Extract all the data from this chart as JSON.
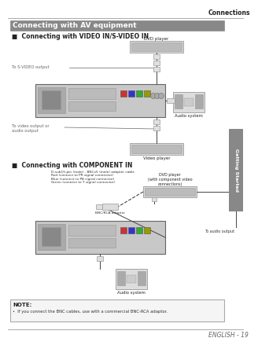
{
  "page_bg": "#ffffff",
  "header_text": "Connections",
  "header_line_color": "#888888",
  "header_text_color": "#222222",
  "main_title_text": "Connecting with AV equipment",
  "main_title_bg": "#888888",
  "main_title_fg": "#ffffff",
  "section1_title": "■  Connecting with VIDEO IN/S-VIDEO IN",
  "section2_title": "■  Connecting with COMPONENT IN",
  "note_title": "NOTE:",
  "note_text": "•  If you connect the BNC cables, use with a commercial BNC-RCA adaptor.",
  "footer_text": "ENGLISH - 19",
  "footer_text_color": "#666666",
  "sidebar_text": "Getting Started",
  "sidebar_bg": "#888888",
  "sidebar_fg": "#ffffff",
  "diag1": {
    "dvd_player": "DVD player",
    "audio_system": "Audio system",
    "video_player": "Video player",
    "s_video": "To S-VIDEO output",
    "video_audio": "To video output or\naudio output"
  },
  "diag2": {
    "line1": "D-sub15-pin (male) - BNCx5 (male) adapter cable",
    "line2": "Red (connect to PR signal connector)",
    "line3": "Blue (connect to PB signal connector)",
    "line4": "Green (connect to Y signal connector)",
    "dvd_player": "DVD player\n(with component video\nconnections)",
    "bnc_rca": "BNC/RCA adapter",
    "audio_output": "To audio output",
    "audio_system": "Audio system"
  },
  "gray_light": "#cccccc",
  "gray_mid": "#999999",
  "gray_dark": "#666666",
  "black": "#222222",
  "cable_col": "#444444",
  "box_fill": "#dddddd",
  "proj_fill": "#c8c8c8"
}
